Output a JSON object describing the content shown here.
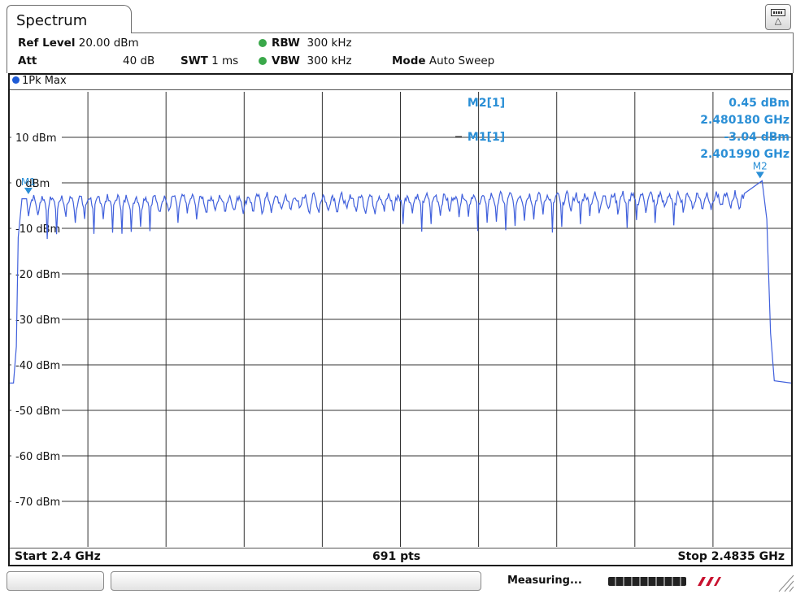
{
  "window": {
    "tab_title": "Spectrum"
  },
  "settings": {
    "ref_level_label": "Ref Level",
    "ref_level_value": "20.00 dBm",
    "att_label": "Att",
    "att_value": "40 dB",
    "swt_label": "SWT",
    "swt_value": "1 ms",
    "rbw_label": "RBW",
    "rbw_value": "300 kHz",
    "vbw_label": "VBW",
    "vbw_value": "300 kHz",
    "mode_label": "Mode",
    "mode_value": "Auto Sweep",
    "indicator_color": "#3aa84a"
  },
  "trace": {
    "label": "1Pk Max",
    "color": "#4060dc",
    "dot_color": "#1e5bd6"
  },
  "markers": {
    "color": "#2a8fd6",
    "m2_label": "M2[1]",
    "m2_level": "0.45 dBm",
    "m2_freq": "2.480180 GHz",
    "m1_label": "M1[1]",
    "m1_level": "-3.04 dBm",
    "m1_freq": "2.401990 GHz",
    "m1_tag": "M1",
    "m2_tag": "M2"
  },
  "chart_data": {
    "type": "line",
    "x_unit": "GHz",
    "y_unit": "dBm",
    "xlim": [
      2.4,
      2.4835
    ],
    "ylim": [
      -80,
      20
    ],
    "grid": true,
    "y_tick_labels": [
      "10 dBm",
      "0 dBm",
      "-10 dBm",
      "-20 dBm",
      "-30 dBm",
      "-40 dBm",
      "-50 dBm",
      "-60 dBm",
      "-70 dBm"
    ],
    "y_tick_values": [
      10,
      0,
      -10,
      -20,
      -30,
      -40,
      -50,
      -60,
      -70
    ],
    "series": [
      {
        "x": [
          2.4,
          2.4004,
          2.4007,
          2.4009,
          2.4013,
          2.4018,
          2.4019,
          2.4785,
          2.4804,
          2.4809,
          2.4813,
          2.4817,
          2.4835
        ],
        "y": [
          -44,
          -44,
          -36,
          -12,
          -3.5,
          -3.5,
          -3.0,
          -2.5,
          0.45,
          -8,
          -33,
          -43.5,
          -44
        ]
      }
    ],
    "pattern": {
      "channel_spacing": 1.0,
      "channel_count": 79,
      "first_channel": 2.402,
      "peak_level": -3.0,
      "dip_level": -9.0
    },
    "markers": [
      {
        "name": "M1",
        "x": 2.40199,
        "y": -3.04
      },
      {
        "name": "M2",
        "x": 2.48018,
        "y": 0.45
      }
    ]
  },
  "footer": {
    "start": "Start 2.4 GHz",
    "points": "691 pts",
    "stop": "Stop 2.4835 GHz"
  },
  "status": {
    "text": "Measuring..."
  }
}
